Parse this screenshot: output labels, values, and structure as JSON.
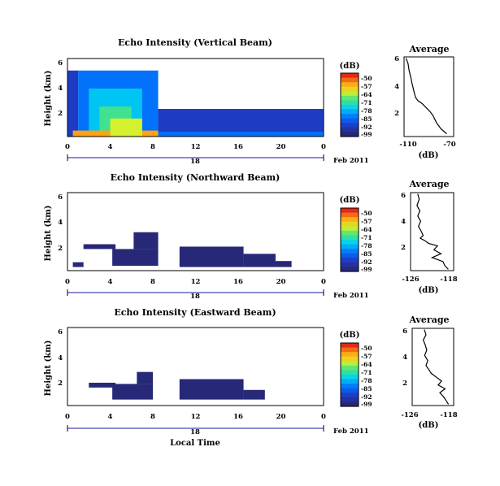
{
  "figure": {
    "date_label": "Feb 2011",
    "day_label": "18",
    "xlabel": "Local Time",
    "colorbar_unit": "(dB)",
    "colorbar_ticks": [
      "-50",
      "-57",
      "-64",
      "-71",
      "-78",
      "-85",
      "-92",
      "-99"
    ]
  },
  "chart_data": [
    {
      "type": "heatmap",
      "title": "Echo Intensity (Vertical Beam)",
      "ylabel": "Height (km)",
      "x_ticks": [
        "0",
        "4",
        "8",
        "12",
        "16",
        "20",
        "0"
      ],
      "y_ticks": [
        "2",
        "4",
        "6"
      ],
      "xlim": [
        0,
        24
      ],
      "ylim": [
        0,
        6.5
      ],
      "color_range_db": [
        -99,
        -50
      ],
      "cells": [
        {
          "t": [
            0,
            1
          ],
          "h": [
            0,
            5.5
          ],
          "db": -92
        },
        {
          "t": [
            1,
            8.5
          ],
          "h": [
            0,
            5.5
          ],
          "db": -85
        },
        {
          "t": [
            2,
            7
          ],
          "h": [
            0,
            4
          ],
          "db": -78
        },
        {
          "t": [
            3,
            6
          ],
          "h": [
            0,
            2.5
          ],
          "db": -71
        },
        {
          "t": [
            0.5,
            8.5
          ],
          "h": [
            0,
            0.5
          ],
          "db": -57
        },
        {
          "t": [
            4,
            7
          ],
          "h": [
            0,
            1.5
          ],
          "db": -64
        },
        {
          "t": [
            8.5,
            24
          ],
          "h": [
            0.2,
            2.3
          ],
          "db": -92
        },
        {
          "t": [
            8.5,
            24
          ],
          "h": [
            0,
            0.4
          ],
          "db": -85
        }
      ],
      "profile": {
        "title": "Average",
        "xlabel": "(dB)",
        "x_ticks": [
          "-110",
          "-70"
        ],
        "y_ticks": [
          "2",
          "4",
          "6"
        ],
        "xlim": [
          -115,
          -65
        ],
        "ylim": [
          0,
          6
        ],
        "x": [
          -113,
          -111,
          -110,
          -109,
          -108,
          -107,
          -106,
          -105,
          -104,
          -103,
          -101,
          -97,
          -93,
          -89,
          -86,
          -84,
          -82,
          -80,
          -78,
          -75,
          -72
        ],
        "h": [
          5.9,
          5.5,
          5.0,
          4.7,
          4.4,
          4.0,
          3.7,
          3.4,
          3.1,
          2.9,
          2.7,
          2.5,
          2.2,
          1.9,
          1.6,
          1.3,
          1.0,
          0.8,
          0.6,
          0.4,
          0.2
        ]
      }
    },
    {
      "type": "heatmap",
      "title": "Echo Intensity (Northward Beam)",
      "ylabel": "Height (km)",
      "x_ticks": [
        "0",
        "4",
        "8",
        "12",
        "16",
        "20",
        "0"
      ],
      "y_ticks": [
        "2",
        "4",
        "6"
      ],
      "xlim": [
        0,
        24
      ],
      "ylim": [
        0,
        6.5
      ],
      "color_range_db": [
        -99,
        -50
      ],
      "cells": [
        {
          "t": [
            1.5,
            4.5
          ],
          "h": [
            1.8,
            2.2
          ],
          "db": -99
        },
        {
          "t": [
            4.2,
            8.5
          ],
          "h": [
            0.4,
            1.8
          ],
          "db": -99
        },
        {
          "t": [
            6.2,
            8.5
          ],
          "h": [
            1.8,
            3.2
          ],
          "db": -99
        },
        {
          "t": [
            10.5,
            16.5
          ],
          "h": [
            0.3,
            2.0
          ],
          "db": -99
        },
        {
          "t": [
            16.5,
            19.5
          ],
          "h": [
            0.3,
            1.4
          ],
          "db": -99
        },
        {
          "t": [
            19.5,
            21
          ],
          "h": [
            0.3,
            0.8
          ],
          "db": -99
        },
        {
          "t": [
            0.5,
            1.5
          ],
          "h": [
            0.3,
            0.7
          ],
          "db": -99
        }
      ],
      "profile": {
        "title": "Average",
        "xlabel": "(dB)",
        "x_ticks": [
          "-126",
          "-118"
        ],
        "y_ticks": [
          "2",
          "4",
          "6"
        ],
        "xlim": [
          -128,
          -116
        ],
        "ylim": [
          0,
          6
        ],
        "x": [
          -126,
          -125.6,
          -126.2,
          -125.4,
          -126.0,
          -125.2,
          -125.8,
          -125.0,
          -124.5,
          -125.3,
          -124.0,
          -123.0,
          -120.5,
          -121.5,
          -119.5,
          -122.0,
          -119.0,
          -118.5,
          -117.5
        ],
        "h": [
          5.9,
          5.5,
          5.0,
          4.6,
          4.2,
          3.8,
          3.4,
          3.0,
          2.7,
          2.5,
          2.3,
          2.1,
          1.9,
          1.6,
          1.3,
          1.0,
          0.7,
          0.4,
          0.1
        ]
      }
    },
    {
      "type": "heatmap",
      "title": "Echo Intensity (Eastward Beam)",
      "ylabel": "Height (km)",
      "x_ticks": [
        "0",
        "4",
        "8",
        "12",
        "16",
        "20",
        "0"
      ],
      "y_ticks": [
        "2",
        "4",
        "6"
      ],
      "xlim": [
        0,
        24
      ],
      "ylim": [
        0,
        6.5
      ],
      "color_range_db": [
        -99,
        -50
      ],
      "cells": [
        {
          "t": [
            2,
            4.5
          ],
          "h": [
            1.5,
            1.9
          ],
          "db": -99
        },
        {
          "t": [
            4.2,
            8.0
          ],
          "h": [
            0.5,
            1.8
          ],
          "db": -99
        },
        {
          "t": [
            6.5,
            8.0
          ],
          "h": [
            1.8,
            2.8
          ],
          "db": -99
        },
        {
          "t": [
            10.5,
            16.5
          ],
          "h": [
            0.5,
            2.2
          ],
          "db": -99
        },
        {
          "t": [
            16.5,
            18.5
          ],
          "h": [
            0.5,
            1.3
          ],
          "db": -99
        }
      ],
      "profile": {
        "title": "Average",
        "xlabel": "(dB)",
        "x_ticks": [
          "-126",
          "-118"
        ],
        "y_ticks": [
          "2",
          "4",
          "6"
        ],
        "xlim": [
          -128,
          -116
        ],
        "ylim": [
          0,
          6
        ],
        "x": [
          -124.5,
          -124.0,
          -124.8,
          -124.2,
          -123.8,
          -124.4,
          -123.5,
          -124.0,
          -123.2,
          -122.5,
          -121.0,
          -119.5,
          -120.5,
          -118.5,
          -120.0,
          -119.0,
          -118.2,
          -117.5
        ],
        "h": [
          5.9,
          5.5,
          5.1,
          4.7,
          4.3,
          3.9,
          3.5,
          3.1,
          2.8,
          2.5,
          2.2,
          1.9,
          1.6,
          1.3,
          1.0,
          0.7,
          0.4,
          0.1
        ]
      }
    }
  ]
}
